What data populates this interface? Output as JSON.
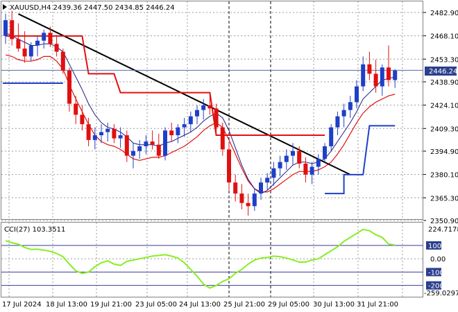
{
  "header": {
    "symbol_line": "XAUUSD,H4  2439.36 2447.50 2434.85 2446.24"
  },
  "indicator": {
    "label": "CCI(27) 103.3511",
    "scale_top": "224.7178",
    "scale_bottom": "-259.0297",
    "level_labels": [
      "100",
      "0.00",
      "-100",
      "-200"
    ],
    "level_values": [
      100,
      0,
      -100,
      -200
    ]
  },
  "price_axis": {
    "ticks": [
      "2482.90",
      "2468.10",
      "2453.30",
      "2438.90",
      "2424.10",
      "2409.30",
      "2394.90",
      "2380.10",
      "2365.30",
      "2350.90"
    ],
    "tick_values": [
      2482.9,
      2468.1,
      2453.3,
      2438.9,
      2424.1,
      2409.3,
      2394.9,
      2380.1,
      2365.3,
      2350.9
    ],
    "current_price": "2446.24",
    "current_value": 2446.24
  },
  "time_axis": {
    "labels": [
      "17 Jul 2024",
      "18 Jul 13:00",
      "19 Jul 21:00",
      "23 Jul 05:00",
      "24 Jul 13:00",
      "25 Jul 21:00",
      "29 Jul 05:00",
      "30 Jul 13:00",
      "31 Jul 21:00"
    ]
  },
  "colors": {
    "bull": "#1f3fc7",
    "bear": "#e01010",
    "ma_fast": "#1c1c80",
    "ma_slow": "#e01010",
    "trendline": "#000000",
    "cci": "#88ee22",
    "level_line": "#3a3a9a",
    "grid": "#9a9a9a",
    "label_bg": "#2b3f8e"
  },
  "chart_data": {
    "type": "candlestick",
    "symbol": "XAUUSD",
    "timeframe": "H4",
    "ohlc_last": {
      "open": 2439.36,
      "high": 2447.5,
      "low": 2434.85,
      "close": 2446.24
    },
    "candles": [
      [
        2468,
        2482,
        2463,
        2478
      ],
      [
        2478,
        2484,
        2462,
        2466
      ],
      [
        2466,
        2476,
        2458,
        2460
      ],
      [
        2460,
        2471,
        2451,
        2455
      ],
      [
        2455,
        2464,
        2452,
        2462
      ],
      [
        2462,
        2468,
        2455,
        2465
      ],
      [
        2465,
        2472,
        2460,
        2470
      ],
      [
        2470,
        2474,
        2461,
        2463
      ],
      [
        2463,
        2468,
        2455,
        2458
      ],
      [
        2458,
        2460,
        2444,
        2446
      ],
      [
        2446,
        2448,
        2420,
        2425
      ],
      [
        2425,
        2430,
        2412,
        2418
      ],
      [
        2418,
        2424,
        2408,
        2412
      ],
      [
        2412,
        2416,
        2398,
        2402
      ],
      [
        2402,
        2410,
        2396,
        2405
      ],
      [
        2405,
        2412,
        2400,
        2407
      ],
      [
        2407,
        2413,
        2401,
        2409
      ],
      [
        2409,
        2412,
        2400,
        2403
      ],
      [
        2403,
        2410,
        2397,
        2405
      ],
      [
        2405,
        2408,
        2388,
        2392
      ],
      [
        2392,
        2400,
        2384,
        2395
      ],
      [
        2395,
        2402,
        2390,
        2398
      ],
      [
        2398,
        2405,
        2393,
        2401
      ],
      [
        2401,
        2408,
        2396,
        2399
      ],
      [
        2399,
        2406,
        2390,
        2392
      ],
      [
        2392,
        2410,
        2389,
        2408
      ],
      [
        2408,
        2413,
        2401,
        2405
      ],
      [
        2405,
        2412,
        2400,
        2410
      ],
      [
        2410,
        2416,
        2404,
        2412
      ],
      [
        2412,
        2420,
        2407,
        2417
      ],
      [
        2417,
        2424,
        2412,
        2421
      ],
      [
        2421,
        2428,
        2415,
        2424
      ],
      [
        2424,
        2431,
        2418,
        2422
      ],
      [
        2422,
        2425,
        2406,
        2410
      ],
      [
        2410,
        2413,
        2392,
        2396
      ],
      [
        2396,
        2400,
        2370,
        2375
      ],
      [
        2375,
        2380,
        2363,
        2368
      ],
      [
        2368,
        2374,
        2358,
        2362
      ],
      [
        2362,
        2368,
        2354,
        2360
      ],
      [
        2360,
        2371,
        2357,
        2368
      ],
      [
        2368,
        2378,
        2364,
        2375
      ],
      [
        2375,
        2381,
        2370,
        2378
      ],
      [
        2378,
        2388,
        2373,
        2384
      ],
      [
        2384,
        2392,
        2379,
        2388
      ],
      [
        2388,
        2396,
        2383,
        2392
      ],
      [
        2392,
        2400,
        2386,
        2395
      ],
      [
        2395,
        2398,
        2384,
        2387
      ],
      [
        2387,
        2391,
        2375,
        2380
      ],
      [
        2380,
        2388,
        2374,
        2385
      ],
      [
        2385,
        2393,
        2380,
        2390
      ],
      [
        2390,
        2400,
        2388,
        2398
      ],
      [
        2398,
        2412,
        2395,
        2410
      ],
      [
        2410,
        2420,
        2405,
        2417
      ],
      [
        2417,
        2425,
        2410,
        2421
      ],
      [
        2421,
        2430,
        2416,
        2426
      ],
      [
        2426,
        2440,
        2422,
        2436
      ],
      [
        2436,
        2455,
        2433,
        2450
      ],
      [
        2450,
        2458,
        2440,
        2444
      ],
      [
        2444,
        2453,
        2432,
        2436
      ],
      [
        2436,
        2450,
        2430,
        2448
      ],
      [
        2448,
        2462,
        2436,
        2440
      ],
      [
        2440,
        2447,
        2435,
        2446
      ]
    ],
    "sma_fast": [
      2470,
      2468,
      2466,
      2464,
      2462,
      2462,
      2463,
      2463,
      2461,
      2458,
      2450,
      2442,
      2434,
      2425,
      2418,
      2413,
      2410,
      2409,
      2407,
      2404,
      2400,
      2399,
      2399,
      2399,
      2398,
      2400,
      2401,
      2403,
      2405,
      2407,
      2410,
      2414,
      2417,
      2419,
      2416,
      2408,
      2397,
      2386,
      2377,
      2371,
      2368,
      2370,
      2374,
      2378,
      2382,
      2386,
      2388,
      2388,
      2387,
      2388,
      2390,
      2395,
      2401,
      2407,
      2413,
      2420,
      2428,
      2432,
      2436,
      2440,
      2441,
      2442
    ],
    "sma_slow": [
      2456,
      2455,
      2453,
      2452,
      2452,
      2453,
      2455,
      2455,
      2452,
      2447,
      2437,
      2428,
      2420,
      2412,
      2405,
      2401,
      2399,
      2398,
      2396,
      2393,
      2390,
      2389,
      2390,
      2391,
      2391,
      2392,
      2394,
      2396,
      2398,
      2401,
      2404,
      2408,
      2411,
      2413,
      2410,
      2402,
      2393,
      2384,
      2376,
      2371,
      2369,
      2369,
      2371,
      2374,
      2377,
      2380,
      2382,
      2382,
      2382,
      2383,
      2385,
      2388,
      2393,
      2399,
      2406,
      2413,
      2419,
      2423,
      2426,
      2428,
      2430,
      2431
    ],
    "trendline": {
      "from": {
        "index": 2,
        "value": 2482
      },
      "to": {
        "index": 54,
        "value": 2380
      }
    },
    "stop_line_red": [
      {
        "from": 0,
        "to": 12,
        "value": 2468
      },
      {
        "from": 13,
        "to": 17,
        "value": 2444
      },
      {
        "from": 18,
        "to": 32,
        "value": 2432
      },
      {
        "from": 33,
        "to": 50,
        "value": 2405
      }
    ],
    "stop_line_blue": [
      {
        "from": 0,
        "to": 9,
        "value": 2438
      },
      {
        "from": 50,
        "to": 53,
        "value": 2368
      },
      {
        "from": 53,
        "to": 56,
        "value": 2380
      },
      {
        "from": 57,
        "to": 61,
        "value": 2411
      }
    ],
    "cci": [
      135,
      120,
      110,
      85,
      70,
      72,
      65,
      55,
      40,
      15,
      -40,
      -90,
      -110,
      -100,
      -60,
      -30,
      -15,
      -40,
      -50,
      -20,
      -10,
      0,
      10,
      20,
      25,
      30,
      20,
      5,
      -30,
      -80,
      -130,
      -190,
      -220,
      -200,
      -170,
      -150,
      -110,
      -80,
      -40,
      -10,
      5,
      10,
      20,
      15,
      5,
      -10,
      -25,
      -25,
      -10,
      0,
      30,
      60,
      90,
      130,
      160,
      190,
      220,
      210,
      180,
      160,
      110,
      103
    ]
  }
}
